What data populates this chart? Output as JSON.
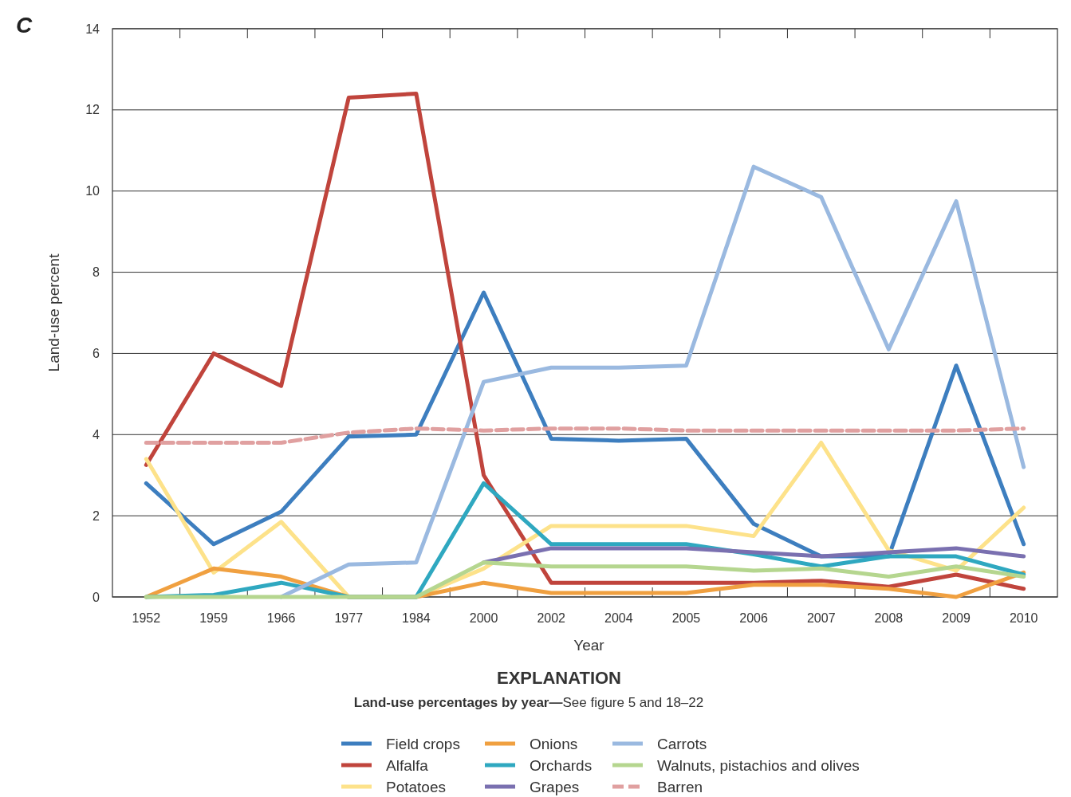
{
  "chart_data": {
    "type": "line",
    "xlabel": "Year",
    "ylabel": "Land-use percent",
    "legend_title": "EXPLANATION",
    "annotations": [
      "C",
      "Land-use percentages by year—See figure 5 and 18–22"
    ],
    "categories": [
      "1952",
      "1959",
      "1966",
      "1977",
      "1984",
      "2000",
      "2002",
      "2004",
      "2005",
      "2006",
      "2007",
      "2008",
      "2009",
      "2010"
    ],
    "ylim": [
      0,
      14
    ],
    "yticks": [
      0,
      2,
      4,
      6,
      8,
      10,
      12,
      14
    ],
    "grid": "y",
    "legend": "bottom",
    "marker": "none",
    "series": [
      {
        "name": "Field crops",
        "color": "#3d7ebf",
        "values": [
          2.8,
          1.3,
          2.1,
          3.95,
          4.0,
          7.5,
          3.9,
          3.85,
          3.9,
          1.8,
          1.0,
          1.0,
          5.7,
          1.3
        ]
      },
      {
        "name": "Alfalfa",
        "color": "#c0443c",
        "values": [
          3.25,
          6.0,
          5.2,
          12.3,
          12.4,
          3.0,
          0.35,
          0.35,
          0.35,
          0.35,
          0.4,
          0.25,
          0.55,
          0.2
        ]
      },
      {
        "name": "Potatoes",
        "color": "#fde28a",
        "values": [
          3.4,
          0.6,
          1.85,
          0,
          0,
          0.7,
          1.75,
          1.75,
          1.75,
          1.5,
          3.8,
          1.15,
          0.65,
          2.2
        ]
      },
      {
        "name": "Onions",
        "color": "#f0a040",
        "values": [
          0,
          0.7,
          0.5,
          0,
          0,
          0.35,
          0.1,
          0.1,
          0.1,
          0.3,
          0.3,
          0.2,
          0,
          0.6
        ]
      },
      {
        "name": "Orchards",
        "color": "#2fa8c0",
        "values": [
          0,
          0.05,
          0.35,
          0,
          0,
          2.8,
          1.3,
          1.3,
          1.3,
          1.05,
          0.75,
          1.0,
          1.0,
          0.55
        ]
      },
      {
        "name": "Grapes",
        "color": "#7a70b0",
        "values": [
          null,
          null,
          null,
          null,
          null,
          0.85,
          1.2,
          1.2,
          1.2,
          1.1,
          1.0,
          1.1,
          1.2,
          1.0
        ]
      },
      {
        "name": "Carrots",
        "color": "#9ab9e0",
        "values": [
          null,
          null,
          0,
          0.8,
          0.85,
          5.3,
          5.65,
          5.65,
          5.7,
          10.6,
          9.85,
          6.1,
          9.75,
          3.2
        ]
      },
      {
        "name": "Walnuts, pistachios and olives",
        "color": "#b5d68f",
        "values": [
          0,
          0,
          0,
          0,
          0,
          0.85,
          0.75,
          0.75,
          0.75,
          0.65,
          0.7,
          0.5,
          0.75,
          0.5
        ]
      },
      {
        "name": "Barren",
        "color": "#e0a0a0",
        "line_style": "dashed",
        "values": [
          3.8,
          3.8,
          3.8,
          4.05,
          4.15,
          4.1,
          4.15,
          4.15,
          4.1,
          4.1,
          4.1,
          4.1,
          4.1,
          4.15
        ]
      }
    ]
  }
}
